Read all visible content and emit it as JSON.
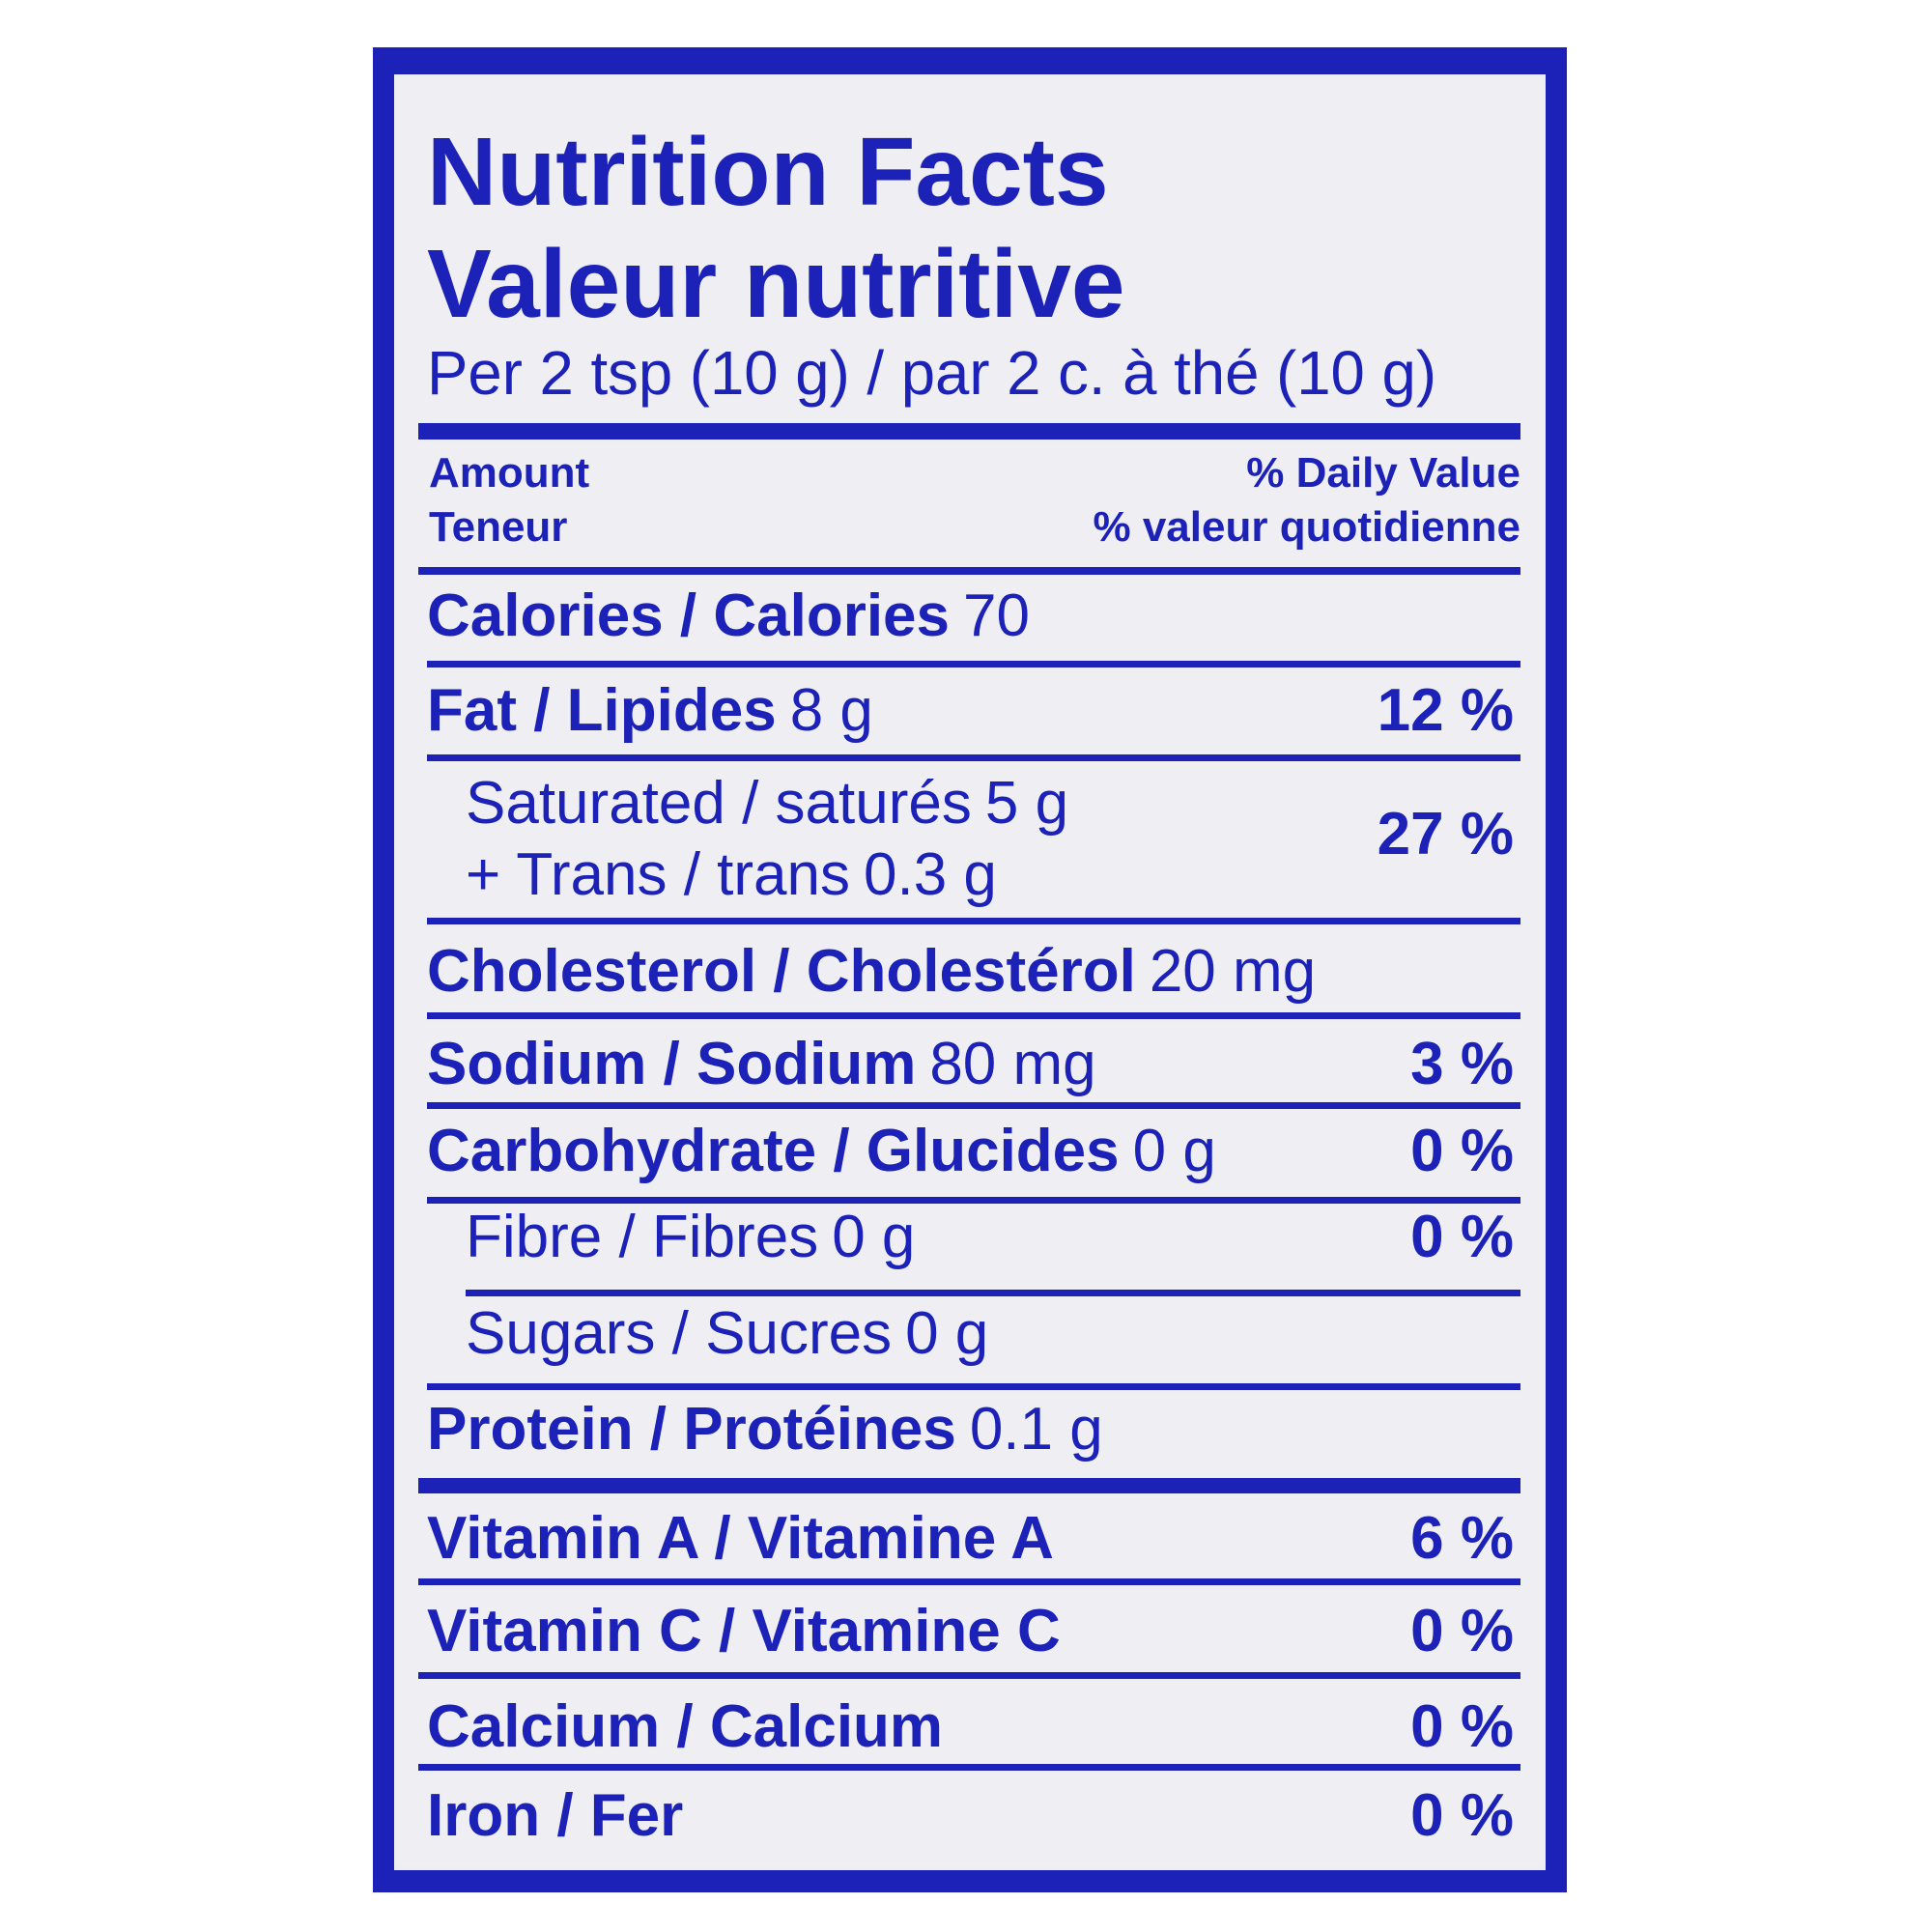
{
  "header": {
    "title": "Nutrition Facts",
    "subtitle": "Valeur nutritive",
    "serving": "Per 2 tsp (10 g) / par 2 c. à thé (10 g)"
  },
  "column_header": {
    "amount": "Amount",
    "amount_fr": "Teneur",
    "daily_value": "% Daily Value",
    "daily_value_fr": "% valeur quotidienne"
  },
  "nutrients": [
    {
      "label": "Calories / Calories",
      "amount": "70"
    },
    {
      "label": "Fat / Lipides",
      "amount": "8 g",
      "percent": "12 %"
    },
    {
      "lines": [
        {
          "label": "Saturated / saturés",
          "amount": "5 g"
        },
        {
          "label": "+ Trans / trans",
          "amount": "0.3 g"
        }
      ],
      "percent": "27 %"
    },
    {
      "label": "Cholesterol / Cholestérol",
      "amount": "20 mg"
    },
    {
      "label": "Sodium / Sodium",
      "amount": "80 mg",
      "percent": "3 %"
    },
    {
      "label": "Carbohydrate / Glucides",
      "amount": "0 g",
      "percent": "0 %"
    },
    {
      "label": "Fibre / Fibres",
      "amount": "0 g",
      "percent": "0 %"
    },
    {
      "label": "Sugars / Sucres",
      "amount": "0 g"
    },
    {
      "label": "Protein / Protéines",
      "amount": "0.1 g"
    }
  ],
  "vitamins": [
    {
      "label": "Vitamin A / Vitamine A",
      "percent": "6 %"
    },
    {
      "label": "Vitamin C / Vitamine C",
      "percent": "0 %"
    },
    {
      "label": "Calcium / Calcium",
      "percent": "0 %"
    },
    {
      "label": "Iron / Fer",
      "percent": "0 %"
    }
  ]
}
